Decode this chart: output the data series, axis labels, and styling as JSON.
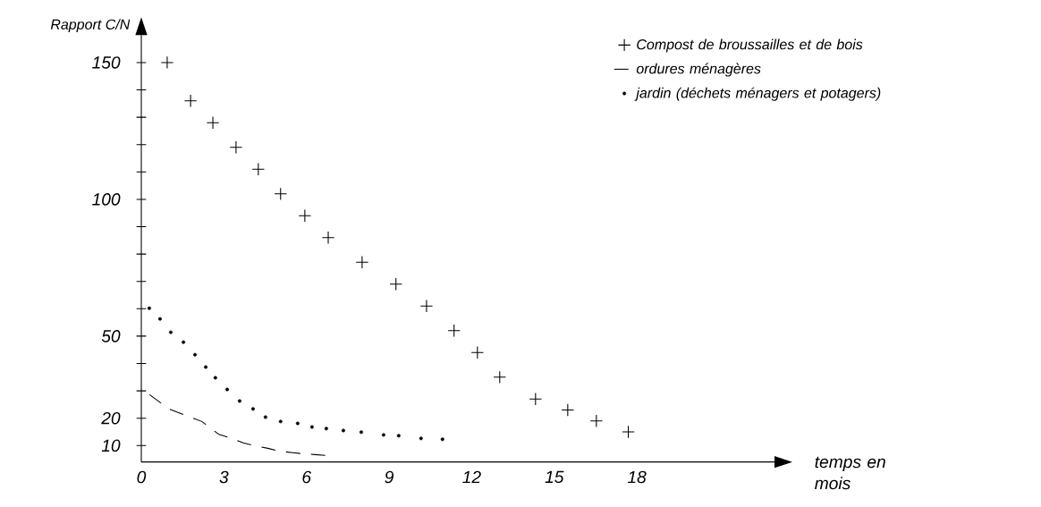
{
  "chart_data": {
    "type": "line",
    "ylabel": "Rapport C/N",
    "xlabel": "temps en mois",
    "xlim": [
      0,
      23
    ],
    "ylim": [
      4,
      160
    ],
    "xticks": [
      0,
      3,
      6,
      9,
      12,
      15,
      18
    ],
    "yticks": [
      10,
      20,
      {
        "value": 30,
        "label": null
      },
      {
        "value": 40,
        "label": null
      },
      50,
      {
        "value": 60,
        "label": null
      },
      {
        "value": 70,
        "label": null
      },
      {
        "value": 80,
        "label": null
      },
      {
        "value": 90,
        "label": null
      },
      100,
      {
        "value": 110,
        "label": null
      },
      {
        "value": 120,
        "label": null
      },
      {
        "value": 130,
        "label": null
      },
      {
        "value": 140,
        "label": null
      },
      150
    ],
    "grid": false,
    "legend": "top right",
    "series": [
      {
        "name": "Compost de broussailles et de bois",
        "type": "scatter",
        "marker": "cross",
        "color": "#000000",
        "x": [
          0.94,
          1.79,
          2.6,
          3.44,
          4.25,
          5.06,
          5.94,
          6.79,
          8.02,
          9.25,
          10.36,
          11.36,
          12.21,
          13.02,
          14.32,
          15.49,
          16.53,
          17.69
        ],
        "values": [
          150,
          136,
          128,
          119,
          111,
          102,
          94,
          86,
          77,
          69,
          61,
          52,
          44,
          35,
          27,
          23,
          19,
          15
        ]
      },
      {
        "name": "ordures ménagères",
        "line_style": "dashed",
        "color": "#000000",
        "x": [
          0.3,
          1.0,
          1.6,
          2.2,
          2.8,
          3.2,
          3.7,
          4.1,
          4.6,
          5.0,
          5.5,
          5.8,
          6.3,
          6.7
        ],
        "values": [
          28.6,
          23.4,
          21.1,
          18.8,
          14.2,
          12.9,
          11.0,
          10.0,
          9.0,
          8.0,
          7.4,
          7.1,
          6.7,
          6.4
        ]
      },
      {
        "name": "jardin (déchets ménagers et potagers)",
        "type": "scatter",
        "marker": "circle",
        "color": "#000000",
        "x": [
          0.29,
          0.68,
          1.07,
          1.53,
          1.95,
          2.34,
          2.69,
          3.12,
          3.57,
          4.06,
          4.51,
          5.06,
          5.68,
          6.2,
          6.72,
          7.34,
          7.99,
          8.8,
          9.35,
          10.16,
          10.94
        ],
        "values": [
          60.2,
          56.3,
          51.4,
          47.8,
          43.2,
          38.7,
          34.8,
          30.5,
          26.3,
          23.4,
          20.4,
          18.8,
          18.1,
          16.8,
          16.2,
          15.5,
          14.9,
          13.9,
          13.6,
          12.6,
          12.3
        ]
      }
    ]
  }
}
